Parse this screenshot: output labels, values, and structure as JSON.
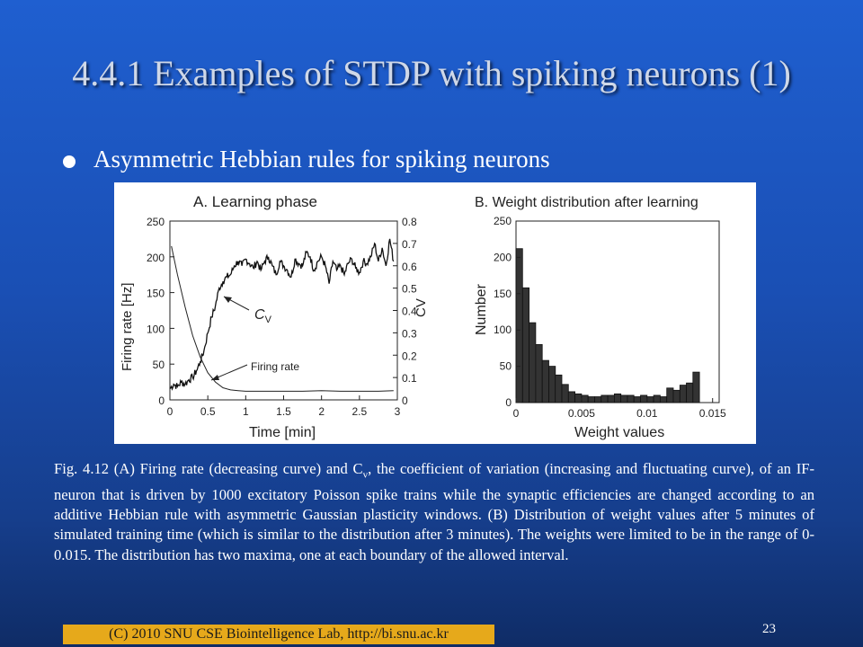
{
  "slide": {
    "title": "4.4.1 Examples of STDP with spiking neurons (1)",
    "bullet": "Asymmetric Hebbian rules for spiking neurons",
    "caption": {
      "part1": "Fig. 4.12 (A) Firing rate (decreasing curve) and C",
      "sub": "v",
      "part2": ", the coefficient of variation (increasing and fluctuating curve), of an IF-neuron that is driven by 1000 excitatory Poisson spike trains while the synaptic efficiencies are changed according to an additive Hebbian rule with asymmetric Gaussian plasticity windows. (B) Distribution of weight values after 5 minutes of simulated training time (which is similar to the distribution after 3 minutes). The weights were limited to be in the range of 0-0.015. The distribution has two maxima, one at each boundary of the allowed interval."
    },
    "footer": "(C) 2010 SNU CSE Biointelligence Lab,   http://bi.snu.ac.kr",
    "page_number": "23"
  },
  "chart_data": [
    {
      "type": "line",
      "title": "A. Learning phase",
      "xlabel": "Time [min]",
      "ylabel": "Firing rate [Hz]",
      "y2label": "CV",
      "xlim": [
        0,
        3
      ],
      "ylim": [
        0,
        250
      ],
      "y2lim": [
        0,
        0.8
      ],
      "xticks": [
        "0",
        "0.5",
        "1",
        "1.5",
        "2",
        "2.5",
        "3"
      ],
      "yticks": [
        "0",
        "50",
        "100",
        "150",
        "200",
        "250"
      ],
      "y2ticks": [
        "0",
        "0.1",
        "0.2",
        "0.3",
        "0.4",
        "0.5",
        "0.6",
        "0.7",
        "0.8"
      ],
      "annotations": {
        "cv": "C",
        "cv_sub": "V",
        "firing": "Firing rate"
      },
      "series": [
        {
          "id": "firing-rate",
          "axis": "left",
          "x": [
            0.02,
            0.1,
            0.2,
            0.3,
            0.4,
            0.5,
            0.6,
            0.7,
            0.8,
            0.9,
            1.0,
            1.25,
            1.5,
            1.75,
            2.0,
            2.25,
            2.5,
            2.75,
            2.95
          ],
          "y": [
            215,
            175,
            130,
            90,
            60,
            38,
            25,
            17,
            14,
            13,
            12,
            12,
            12,
            12,
            13,
            12,
            12,
            12,
            13
          ]
        },
        {
          "id": "cv",
          "axis": "right",
          "x": [
            0.0,
            0.05,
            0.1,
            0.15,
            0.2,
            0.25,
            0.3,
            0.35,
            0.4,
            0.45,
            0.5,
            0.55,
            0.6,
            0.65,
            0.7,
            0.75,
            0.8,
            0.85,
            0.9,
            0.95,
            1.0,
            1.05,
            1.1,
            1.15,
            1.2,
            1.25,
            1.3,
            1.35,
            1.4,
            1.45,
            1.5,
            1.55,
            1.6,
            1.65,
            1.7,
            1.75,
            1.8,
            1.85,
            1.9,
            1.95,
            2.0,
            2.05,
            2.1,
            2.15,
            2.2,
            2.25,
            2.3,
            2.35,
            2.4,
            2.45,
            2.5,
            2.55,
            2.6,
            2.65,
            2.7,
            2.75,
            2.8,
            2.85,
            2.9,
            2.95
          ],
          "y": [
            0.05,
            0.07,
            0.06,
            0.08,
            0.07,
            0.09,
            0.1,
            0.13,
            0.17,
            0.22,
            0.3,
            0.37,
            0.42,
            0.5,
            0.53,
            0.55,
            0.56,
            0.6,
            0.62,
            0.6,
            0.63,
            0.61,
            0.59,
            0.62,
            0.58,
            0.62,
            0.64,
            0.6,
            0.56,
            0.62,
            0.6,
            0.58,
            0.55,
            0.63,
            0.61,
            0.6,
            0.66,
            0.64,
            0.58,
            0.62,
            0.64,
            0.6,
            0.52,
            0.62,
            0.58,
            0.6,
            0.56,
            0.61,
            0.63,
            0.59,
            0.57,
            0.62,
            0.61,
            0.64,
            0.7,
            0.62,
            0.68,
            0.6,
            0.72,
            0.62
          ]
        }
      ]
    },
    {
      "type": "bar",
      "title": "B. Weight distribution after learning",
      "xlabel": "Weight values",
      "ylabel": "Number",
      "xlim": [
        0,
        0.0155
      ],
      "ylim": [
        0,
        250
      ],
      "xticks": [
        "0",
        "0.005",
        "0.01",
        "0.015"
      ],
      "yticks": [
        "0",
        "50",
        "100",
        "150",
        "200",
        "250"
      ],
      "bin_width": 0.0005,
      "values": [
        212,
        158,
        110,
        80,
        58,
        50,
        38,
        25,
        15,
        12,
        10,
        8,
        8,
        10,
        10,
        12,
        10,
        10,
        8,
        10,
        8,
        10,
        8,
        20,
        17,
        24,
        27,
        42
      ]
    }
  ]
}
